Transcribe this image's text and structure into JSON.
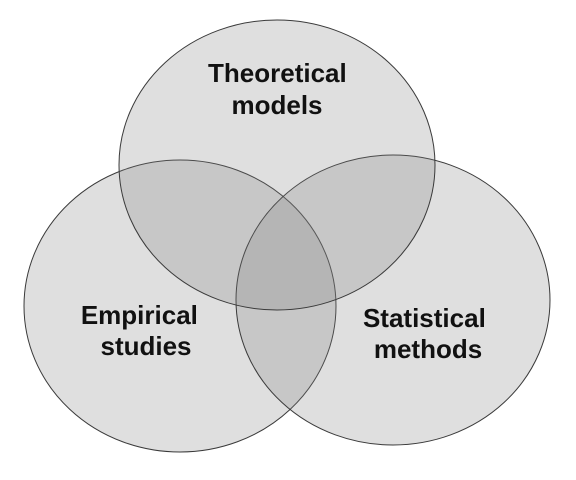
{
  "diagram": {
    "type": "venn",
    "fill_color": "#7f7f7f",
    "outline_color": "#3a3a3a",
    "text_color": "#111111",
    "sets": [
      {
        "id": "theoretical",
        "label_lines": [
          "Theoretical",
          "models"
        ]
      },
      {
        "id": "empirical",
        "label_lines": [
          "Empirical",
          "studies"
        ]
      },
      {
        "id": "statistical",
        "label_lines": [
          "Statistical",
          "methods"
        ]
      }
    ]
  }
}
